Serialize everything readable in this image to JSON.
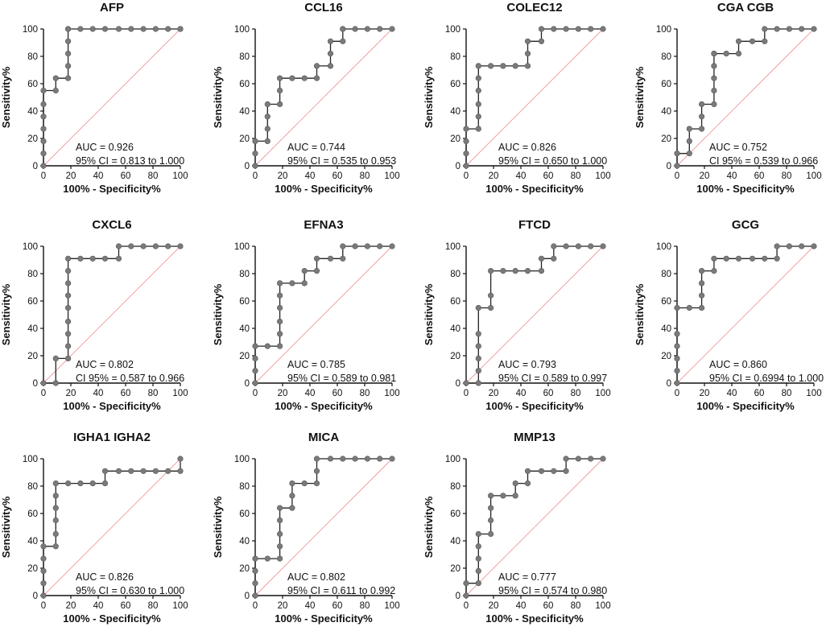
{
  "chart_data": [
    {
      "type": "line",
      "title": "AFP",
      "xlabel": "100% - Specificity%",
      "ylabel": "Sensitivity%",
      "xlim": [
        0,
        100
      ],
      "ylim": [
        0,
        100
      ],
      "xticks": [
        "0",
        "20",
        "40",
        "60",
        "80",
        "100"
      ],
      "yticks": [
        "0",
        "20",
        "40",
        "60",
        "80",
        "100"
      ],
      "annotations": [
        "AUC = 0.926",
        "95% CI = 0.813 to 1.000"
      ],
      "series": [
        {
          "name": "ROC",
          "x": [
            0,
            0,
            0,
            0,
            0,
            0,
            0,
            9,
            9,
            18,
            18,
            18,
            18,
            18,
            18,
            27,
            36,
            45,
            55,
            64,
            73,
            82,
            91,
            100,
            100
          ],
          "y": [
            0,
            9,
            18,
            27,
            36,
            45,
            55,
            55,
            64,
            64,
            73,
            82,
            91,
            100,
            100,
            100,
            100,
            100,
            100,
            100,
            100,
            100,
            100,
            100,
            100
          ]
        },
        {
          "name": "Reference",
          "x": [
            0,
            100
          ],
          "y": [
            0,
            100
          ]
        }
      ]
    },
    {
      "type": "line",
      "title": "CCL16",
      "xlabel": "100% - Specificity%",
      "ylabel": "Sensitivity%",
      "xlim": [
        0,
        100
      ],
      "ylim": [
        0,
        100
      ],
      "xticks": [
        "0",
        "20",
        "40",
        "60",
        "80",
        "100"
      ],
      "yticks": [
        "0",
        "20",
        "40",
        "60",
        "80",
        "100"
      ],
      "annotations": [
        "AUC = 0.744",
        "95% CI = 0.535 to 0.953"
      ],
      "series": [
        {
          "name": "ROC",
          "x": [
            0,
            0,
            0,
            9,
            9,
            9,
            9,
            18,
            18,
            18,
            27,
            36,
            45,
            45,
            55,
            55,
            55,
            64,
            64,
            64,
            73,
            82,
            91,
            100
          ],
          "y": [
            0,
            9,
            18,
            18,
            27,
            36,
            45,
            45,
            55,
            64,
            64,
            64,
            64,
            73,
            73,
            82,
            91,
            91,
            100,
            100,
            100,
            100,
            100,
            100
          ]
        },
        {
          "name": "Reference",
          "x": [
            0,
            100
          ],
          "y": [
            0,
            100
          ]
        }
      ]
    },
    {
      "type": "line",
      "title": "COLEC12",
      "xlabel": "100% - Specificity%",
      "ylabel": "Sensitivity%",
      "xlim": [
        0,
        100
      ],
      "ylim": [
        0,
        100
      ],
      "xticks": [
        "0",
        "20",
        "40",
        "60",
        "80",
        "100"
      ],
      "yticks": [
        "0",
        "20",
        "40",
        "60",
        "80",
        "100"
      ],
      "annotations": [
        "AUC = 0.826",
        "95% CI = 0.650 to 1.000"
      ],
      "series": [
        {
          "name": "ROC",
          "x": [
            0,
            0,
            0,
            0,
            9,
            9,
            9,
            9,
            9,
            9,
            18,
            27,
            36,
            45,
            45,
            45,
            55,
            55,
            64,
            73,
            82,
            91,
            100
          ],
          "y": [
            0,
            9,
            18,
            27,
            27,
            36,
            45,
            55,
            64,
            73,
            73,
            73,
            73,
            73,
            82,
            91,
            91,
            100,
            100,
            100,
            100,
            100,
            100
          ]
        },
        {
          "name": "Reference",
          "x": [
            0,
            100
          ],
          "y": [
            0,
            100
          ]
        }
      ]
    },
    {
      "type": "line",
      "title": "CGA CGB",
      "xlabel": "100% - Specificity%",
      "ylabel": "Sensitivity%",
      "xlim": [
        0,
        100
      ],
      "ylim": [
        0,
        100
      ],
      "xticks": [
        "0",
        "20",
        "40",
        "60",
        "80",
        "100"
      ],
      "yticks": [
        "0",
        "20",
        "40",
        "60",
        "80",
        "100"
      ],
      "annotations": [
        "AUC = 0.752",
        "CI 95% = 0.539 to 0.966"
      ],
      "series": [
        {
          "name": "ROC",
          "x": [
            0,
            0,
            9,
            9,
            9,
            18,
            18,
            18,
            27,
            27,
            27,
            27,
            27,
            27,
            36,
            45,
            45,
            55,
            64,
            64,
            73,
            82,
            91,
            100
          ],
          "y": [
            0,
            9,
            9,
            18,
            27,
            27,
            36,
            45,
            45,
            55,
            64,
            73,
            82,
            82,
            82,
            82,
            91,
            91,
            91,
            100,
            100,
            100,
            100,
            100
          ]
        },
        {
          "name": "Reference",
          "x": [
            0,
            100
          ],
          "y": [
            0,
            100
          ]
        }
      ]
    },
    {
      "type": "line",
      "title": "CXCL6",
      "xlabel": "100% - Specificity%",
      "ylabel": "Sensitivity%",
      "xlim": [
        0,
        100
      ],
      "ylim": [
        0,
        100
      ],
      "xticks": [
        "0",
        "20",
        "40",
        "60",
        "80",
        "100"
      ],
      "yticks": [
        "0",
        "20",
        "40",
        "60",
        "80",
        "100"
      ],
      "annotations": [
        "AUC = 0.802",
        "CI 95% = 0.587 to 0.966"
      ],
      "series": [
        {
          "name": "ROC",
          "x": [
            0,
            9,
            9,
            18,
            18,
            18,
            18,
            18,
            18,
            18,
            18,
            18,
            27,
            36,
            45,
            55,
            55,
            64,
            73,
            82,
            91,
            100
          ],
          "y": [
            0,
            0,
            18,
            18,
            27,
            36,
            45,
            55,
            64,
            73,
            82,
            91,
            91,
            91,
            91,
            91,
            100,
            100,
            100,
            100,
            100,
            100
          ]
        },
        {
          "name": "Reference",
          "x": [
            0,
            100
          ],
          "y": [
            0,
            100
          ]
        }
      ]
    },
    {
      "type": "line",
      "title": "EFNA3",
      "xlabel": "100% - Specificity%",
      "ylabel": "Sensitivity%",
      "xlim": [
        0,
        100
      ],
      "ylim": [
        0,
        100
      ],
      "xticks": [
        "0",
        "20",
        "40",
        "60",
        "80",
        "100"
      ],
      "yticks": [
        "0",
        "20",
        "40",
        "60",
        "80",
        "100"
      ],
      "annotations": [
        "AUC = 0.785",
        "95% CI = 0.589 to 0.981"
      ],
      "series": [
        {
          "name": "ROC",
          "x": [
            0,
            0,
            0,
            0,
            9,
            18,
            18,
            18,
            18,
            18,
            18,
            27,
            36,
            36,
            45,
            45,
            55,
            64,
            64,
            73,
            82,
            91,
            100
          ],
          "y": [
            0,
            9,
            18,
            27,
            27,
            27,
            36,
            45,
            55,
            64,
            73,
            73,
            73,
            82,
            82,
            91,
            91,
            91,
            100,
            100,
            100,
            100,
            100
          ]
        },
        {
          "name": "Reference",
          "x": [
            0,
            100
          ],
          "y": [
            0,
            100
          ]
        }
      ]
    },
    {
      "type": "line",
      "title": "FTCD",
      "xlabel": "100% - Specificity%",
      "ylabel": "Sensitivity%",
      "xlim": [
        0,
        100
      ],
      "ylim": [
        0,
        100
      ],
      "xticks": [
        "0",
        "20",
        "40",
        "60",
        "80",
        "100"
      ],
      "yticks": [
        "0",
        "20",
        "40",
        "60",
        "80",
        "100"
      ],
      "annotations": [
        "AUC = 0.793",
        "95% CI =  0.589 to 0.997"
      ],
      "series": [
        {
          "name": "ROC",
          "x": [
            0,
            9,
            9,
            9,
            9,
            9,
            9,
            18,
            18,
            18,
            27,
            36,
            45,
            55,
            55,
            64,
            64,
            73,
            82,
            91,
            100
          ],
          "y": [
            0,
            0,
            9,
            18,
            27,
            36,
            55,
            55,
            64,
            82,
            82,
            82,
            82,
            82,
            91,
            91,
            100,
            100,
            100,
            100,
            100
          ]
        },
        {
          "name": "Reference",
          "x": [
            0,
            100
          ],
          "y": [
            0,
            100
          ]
        }
      ]
    },
    {
      "type": "line",
      "title": "GCG",
      "xlabel": "100% - Specificity%",
      "ylabel": "Sensitivity%",
      "xlim": [
        0,
        100
      ],
      "ylim": [
        0,
        100
      ],
      "xticks": [
        "0",
        "20",
        "40",
        "60",
        "80",
        "100"
      ],
      "yticks": [
        "0",
        "20",
        "40",
        "60",
        "80",
        "100"
      ],
      "annotations": [
        "AUC = 0.860",
        "95% CI = 0.6994 to 1.000"
      ],
      "series": [
        {
          "name": "ROC",
          "x": [
            0,
            0,
            0,
            0,
            0,
            0,
            9,
            18,
            18,
            18,
            18,
            27,
            27,
            36,
            45,
            55,
            64,
            73,
            73,
            82,
            91,
            100
          ],
          "y": [
            0,
            9,
            18,
            27,
            36,
            55,
            55,
            55,
            64,
            73,
            82,
            82,
            91,
            91,
            91,
            91,
            91,
            91,
            100,
            100,
            100,
            100
          ]
        },
        {
          "name": "Reference",
          "x": [
            0,
            100
          ],
          "y": [
            0,
            100
          ]
        }
      ]
    },
    {
      "type": "line",
      "title": "IGHA1 IGHA2",
      "xlabel": "100% - Specificity%",
      "ylabel": "Sensitivity%",
      "xlim": [
        0,
        100
      ],
      "ylim": [
        0,
        100
      ],
      "xticks": [
        "0",
        "20",
        "40",
        "60",
        "80",
        "100"
      ],
      "yticks": [
        "0",
        "20",
        "40",
        "60",
        "80",
        "100"
      ],
      "annotations": [
        "AUC = 0.826",
        "95% CI = 0.630 to 1.000"
      ],
      "series": [
        {
          "name": "ROC",
          "x": [
            0,
            0,
            0,
            0,
            0,
            9,
            9,
            9,
            9,
            9,
            9,
            18,
            27,
            36,
            45,
            45,
            55,
            64,
            73,
            82,
            91,
            100,
            100
          ],
          "y": [
            0,
            9,
            18,
            27,
            36,
            36,
            45,
            55,
            64,
            73,
            82,
            82,
            82,
            82,
            82,
            91,
            91,
            91,
            91,
            91,
            91,
            91,
            100
          ]
        },
        {
          "name": "Reference",
          "x": [
            0,
            100
          ],
          "y": [
            0,
            100
          ]
        }
      ]
    },
    {
      "type": "line",
      "title": "MICA",
      "xlabel": "100% - Specificity%",
      "ylabel": "Sensitivity%",
      "xlim": [
        0,
        100
      ],
      "ylim": [
        0,
        100
      ],
      "xticks": [
        "0",
        "20",
        "40",
        "60",
        "80",
        "100"
      ],
      "yticks": [
        "0",
        "20",
        "40",
        "60",
        "80",
        "100"
      ],
      "annotations": [
        "AUC = 0.802",
        "95% CI = 0.611 to 0.992"
      ],
      "series": [
        {
          "name": "ROC",
          "x": [
            0,
            0,
            0,
            0,
            9,
            18,
            18,
            18,
            18,
            18,
            27,
            27,
            27,
            36,
            45,
            45,
            45,
            55,
            64,
            73,
            82,
            91,
            100
          ],
          "y": [
            0,
            9,
            18,
            27,
            27,
            27,
            36,
            45,
            55,
            64,
            64,
            73,
            82,
            82,
            82,
            91,
            100,
            100,
            100,
            100,
            100,
            100,
            100
          ]
        },
        {
          "name": "Reference",
          "x": [
            0,
            100
          ],
          "y": [
            0,
            100
          ]
        }
      ]
    },
    {
      "type": "line",
      "title": "MMP13",
      "xlabel": "100% - Specificity%",
      "ylabel": "Sensitivity%",
      "xlim": [
        0,
        100
      ],
      "ylim": [
        0,
        100
      ],
      "xticks": [
        "0",
        "20",
        "40",
        "60",
        "80",
        "100"
      ],
      "yticks": [
        "0",
        "20",
        "40",
        "60",
        "80",
        "100"
      ],
      "annotations": [
        "AUC = 0.777",
        "95% CI = 0.574 to 0.980"
      ],
      "series": [
        {
          "name": "ROC",
          "x": [
            0,
            0,
            9,
            9,
            9,
            9,
            9,
            18,
            18,
            18,
            18,
            27,
            36,
            36,
            45,
            45,
            55,
            64,
            73,
            73,
            82,
            91,
            100
          ],
          "y": [
            0,
            9,
            9,
            18,
            27,
            36,
            45,
            45,
            55,
            64,
            73,
            73,
            73,
            82,
            82,
            91,
            91,
            91,
            91,
            100,
            100,
            100,
            100
          ]
        },
        {
          "name": "Reference",
          "x": [
            0,
            100
          ],
          "y": [
            0,
            100
          ]
        }
      ]
    }
  ]
}
